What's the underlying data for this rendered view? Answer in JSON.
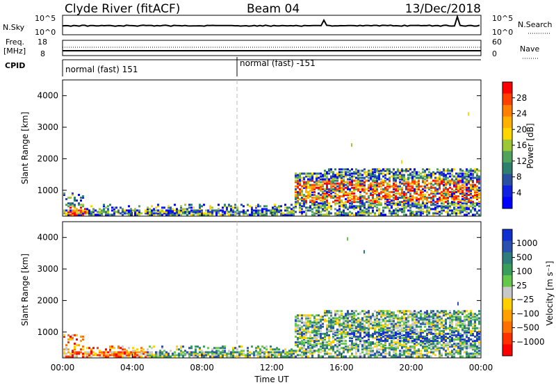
{
  "header": {
    "station": "Clyde River (fitACF)",
    "beam": "Beam 04",
    "date": "13/Dec/2018"
  },
  "top_panels": {
    "nsky": {
      "label": "N.Sky",
      "left_ticks": [
        "10^5",
        "10^0"
      ],
      "right_label": "N.Search",
      "right_ticks": [
        "10^5",
        "10^0"
      ]
    },
    "freq": {
      "label_line1": "Freq.",
      "label_line2": "[MHz]",
      "left_ticks": [
        "18",
        "8"
      ],
      "right_label": "Nave",
      "right_ticks": [
        "60",
        "0"
      ]
    },
    "cpid": {
      "label": "CPID",
      "segments": [
        "normal (fast) 151",
        "normal (fast) -151"
      ]
    }
  },
  "chart_data": [
    {
      "type": "heatmap",
      "name": "power",
      "xlabel": "",
      "ylabel": "Slant Range [km]",
      "ylim": [
        180,
        4500
      ],
      "y_ticks": [
        1000,
        2000,
        3000,
        4000
      ],
      "x_ticks": [
        "00:00",
        "04:00",
        "08:00",
        "12:00",
        "16:00",
        "20:00",
        "00:00"
      ],
      "colorbar": {
        "label": "Power [dB]",
        "ticks": [
          "28",
          "24",
          "20",
          "16",
          "12",
          "8",
          "4"
        ],
        "colors": [
          "#ff0000",
          "#ff4000",
          "#ff8000",
          "#ffb000",
          "#ffd700",
          "#9cc837",
          "#4fa35b",
          "#2f7f6e",
          "#2a4fa0",
          "#1020e0",
          "#0000ff"
        ]
      }
    },
    {
      "type": "heatmap",
      "name": "velocity",
      "xlabel": "Time UT",
      "ylabel": "Slant Range [km]",
      "ylim": [
        180,
        4500
      ],
      "y_ticks": [
        1000,
        2000,
        3000,
        4000
      ],
      "x_ticks": [
        "00:00",
        "04:00",
        "08:00",
        "12:00",
        "16:00",
        "20:00",
        "00:00"
      ],
      "colorbar": {
        "label": "Velocity [m s⁻¹]",
        "ticks": [
          "1000",
          "500",
          "100",
          "25",
          "−25",
          "−100",
          "−500",
          "−1000"
        ],
        "colors": [
          "#1030d0",
          "#2a50b0",
          "#2e7d7a",
          "#3a9e5a",
          "#66c84a",
          "#c8c8c8",
          "#ffd000",
          "#ffa000",
          "#ff7000",
          "#ff3000",
          "#ff0000"
        ]
      }
    }
  ],
  "x_axis_title": "Time UT"
}
